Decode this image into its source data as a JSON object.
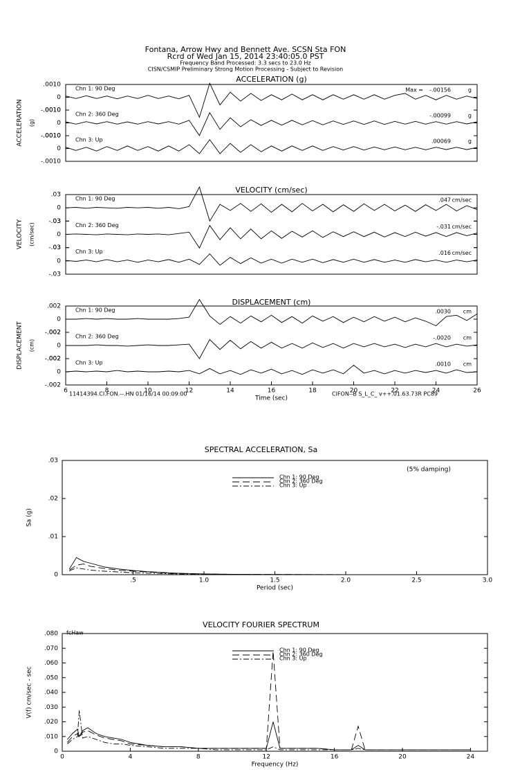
{
  "header": {
    "lines": [
      "Fontana, Arrow Hwy and Bennett Ave.     SCSN Sta FON",
      "Rcrd of Wed Jan 15, 2014 23:40:05.0 PST",
      "Frequency Band Processed: 3.3 secs to 23.0 Hz",
      "CISN/CSMIP Preliminary Strong Motion Processing - Subject to Revision"
    ]
  },
  "chart_data": [
    {
      "type": "strip",
      "title": "ACCELERATION (g)",
      "ylabel": "ACCELERATION",
      "yunit_label": "(g)",
      "unit": "g",
      "x": [
        6,
        6.5,
        7,
        7.5,
        8,
        8.5,
        9,
        9.5,
        10,
        10.5,
        11,
        11.5,
        12,
        12.5,
        13,
        13.5,
        14,
        14.5,
        15,
        15.5,
        16,
        16.5,
        17,
        17.5,
        18,
        18.5,
        19,
        19.5,
        20,
        20.5,
        21,
        21.5,
        22,
        22.5,
        23,
        23.5,
        24,
        24.5,
        25,
        25.5,
        26
      ],
      "xlim": [
        6,
        26
      ],
      "ylim": [
        -0.001,
        0.001
      ],
      "yticks": [
        {
          "value": 0.001,
          "label": ".0010"
        },
        0,
        {
          "value": -0.001,
          "label": "-.0010"
        }
      ],
      "series": [
        {
          "name": "Chn 1: 90 Deg",
          "color": "#000",
          "peak_prefix": "Max =",
          "peak_label": "-.00156",
          "values": [
            0.0001,
            -0.0001,
            0.00012,
            -0.0001,
            0.0001,
            -0.00012,
            0.0001,
            -0.0001,
            0.00015,
            -0.0001,
            0.0001,
            -0.00012,
            0.00015,
            -0.00156,
            0.0011,
            -0.0006,
            0.0004,
            -0.0003,
            0.0003,
            -0.00025,
            0.0002,
            -0.0002,
            0.00025,
            -0.0002,
            0.0002,
            -0.0002,
            0.0002,
            -0.00015,
            0.0002,
            -0.00015,
            0.0002,
            -0.00015,
            0.00015,
            0.0003,
            -0.00015,
            0.00015,
            -0.0002,
            0.00015,
            -0.00015,
            0.0001,
            -0.0001
          ]
        },
        {
          "name": "Chn 2: 360 Deg",
          "color": "#000",
          "peak_label": "-.00099",
          "values": [
            8e-05,
            -0.0001,
            0.0001,
            -8e-05,
            0.0001,
            -0.0001,
            8e-05,
            -0.0001,
            0.0001,
            -8e-05,
            0.0001,
            -0.0001,
            0.0002,
            -0.00099,
            0.0008,
            -0.0005,
            0.0004,
            -0.0003,
            0.00025,
            -0.0002,
            0.0002,
            -0.00018,
            0.0002,
            -0.00015,
            0.00018,
            -0.00015,
            0.00015,
            -0.00012,
            0.00015,
            -0.00012,
            0.00015,
            -0.00012,
            0.00012,
            -0.0001,
            0.00012,
            -0.0001,
            0.0001,
            -0.0001,
            0.0001,
            -8e-05,
            8e-05
          ]
        },
        {
          "name": "Chn 3: Up",
          "color": "#000",
          "peak_label": ".00069",
          "values": [
            0.0001,
            -0.00015,
            0.0001,
            -0.0002,
            0.00015,
            -0.00015,
            0.0002,
            -0.00015,
            0.00015,
            -0.0002,
            0.0002,
            -0.0002,
            0.0003,
            -0.0004,
            0.00069,
            -0.0004,
            0.0004,
            -0.0003,
            0.0003,
            -0.00025,
            0.0002,
            -0.0002,
            0.0002,
            -0.00015,
            0.0002,
            -0.00015,
            0.00015,
            -0.00012,
            0.00015,
            -0.00012,
            0.00012,
            -0.0001,
            0.00012,
            -0.0001,
            0.0001,
            -0.0001,
            0.0001,
            -8e-05,
            0.0001,
            -8e-05,
            8e-05
          ]
        }
      ]
    },
    {
      "type": "strip",
      "title": "VELOCITY (cm/sec)",
      "ylabel": "VELOCITY",
      "yunit_label": "(cm/sec)",
      "unit": "cm/sec",
      "x": [
        6,
        6.5,
        7,
        7.5,
        8,
        8.5,
        9,
        9.5,
        10,
        10.5,
        11,
        11.5,
        12,
        12.5,
        13,
        13.5,
        14,
        14.5,
        15,
        15.5,
        16,
        16.5,
        17,
        17.5,
        18,
        18.5,
        19,
        19.5,
        20,
        20.5,
        21,
        21.5,
        22,
        22.5,
        23,
        23.5,
        24,
        24.5,
        25,
        25.5,
        26
      ],
      "xlim": [
        6,
        26
      ],
      "ylim": [
        -0.03,
        0.03
      ],
      "yticks": [
        {
          "value": 0.03,
          "label": ".03"
        },
        0,
        {
          "value": -0.03,
          "label": "-.03"
        }
      ],
      "series": [
        {
          "name": "Chn 1: 90 Deg",
          "color": "#000",
          "peak_label": ".047",
          "values": [
            0,
            0.001,
            -0.001,
            0.001,
            0,
            -0.001,
            0.001,
            0,
            0.001,
            -0.001,
            0.001,
            -0.002,
            0.003,
            0.047,
            -0.03,
            0.008,
            -0.006,
            0.01,
            -0.008,
            0.009,
            -0.01,
            0.008,
            -0.009,
            0.01,
            -0.007,
            0.008,
            -0.009,
            0.007,
            -0.008,
            0.009,
            -0.006,
            0.008,
            -0.007,
            0.006,
            -0.008,
            0.007,
            -0.006,
            0.008,
            -0.007,
            0.005,
            -0.004
          ]
        },
        {
          "name": "Chn 2: 360 Deg",
          "color": "#000",
          "peak_label": "-.031",
          "values": [
            0,
            0.001,
            0,
            -0.001,
            0.001,
            0,
            -0.001,
            0.001,
            0,
            0.001,
            -0.001,
            0.002,
            0.005,
            -0.031,
            0.02,
            -0.012,
            0.015,
            -0.01,
            0.012,
            -0.01,
            0.008,
            -0.009,
            0.007,
            -0.006,
            0.008,
            -0.007,
            0.006,
            -0.005,
            0.006,
            -0.005,
            0.005,
            -0.006,
            0.004,
            -0.005,
            0.005,
            -0.004,
            0.004,
            -0.005,
            0.004,
            -0.003,
            0.003
          ]
        },
        {
          "name": "Chn 3: Up",
          "color": "#000",
          "peak_label": ".016",
          "values": [
            0.001,
            -0.001,
            0.002,
            -0.002,
            0.003,
            -0.002,
            0.002,
            -0.003,
            0.002,
            -0.002,
            0.003,
            -0.003,
            0.004,
            -0.008,
            0.016,
            -0.01,
            0.008,
            -0.006,
            0.007,
            -0.005,
            0.004,
            -0.005,
            0.004,
            -0.003,
            0.004,
            -0.004,
            0.003,
            -0.003,
            0.004,
            -0.003,
            0.003,
            -0.003,
            0.002,
            -0.003,
            0.003,
            -0.002,
            0.002,
            -0.003,
            0.002,
            -0.002,
            0.002
          ]
        }
      ]
    },
    {
      "type": "strip",
      "title": "DISPLACEMENT (cm)",
      "ylabel": "DISPLACEMENT",
      "yunit_label": "(cm)",
      "unit": "cm",
      "xlabel": "Time (sec)",
      "annotations": [
        "11414394.CI.FON.--.HN 01/16/14 00:09:00",
        "CIFON--B  S_L_C_  v++.01.63.73R PC89"
      ],
      "x": [
        6,
        6.5,
        7,
        7.5,
        8,
        8.5,
        9,
        9.5,
        10,
        10.5,
        11,
        11.5,
        12,
        12.5,
        13,
        13.5,
        14,
        14.5,
        15,
        15.5,
        16,
        16.5,
        17,
        17.5,
        18,
        18.5,
        19,
        19.5,
        20,
        20.5,
        21,
        21.5,
        22,
        22.5,
        23,
        23.5,
        24,
        24.5,
        25,
        25.5,
        26
      ],
      "xlim": [
        6,
        26
      ],
      "xticks": [
        6,
        8,
        10,
        12,
        14,
        16,
        18,
        20,
        22,
        24,
        26
      ],
      "ylim": [
        -0.002,
        0.002
      ],
      "yticks": [
        {
          "value": 0.002,
          "label": ".002"
        },
        0,
        {
          "value": -0.002,
          "label": "-.002"
        }
      ],
      "series": [
        {
          "name": "Chn 1: 90 Deg",
          "color": "#000",
          "peak_label": ".0030",
          "values": [
            0,
            0,
            0.0001,
            0,
            0.0001,
            0,
            0,
            0.0001,
            0,
            0,
            0,
            0.0001,
            0.0003,
            0.003,
            0.0005,
            -0.0008,
            0.0004,
            -0.0006,
            0.0005,
            -0.0004,
            0.0006,
            -0.0005,
            0.0004,
            -0.0006,
            0.0005,
            -0.0003,
            0.0004,
            -0.0005,
            0.0003,
            -0.0004,
            0.0004,
            -0.0003,
            0.0003,
            -0.0004,
            0.0002,
            -0.0003,
            -0.001,
            0.0004,
            0.0006,
            -0.0002,
            0.0008
          ]
        },
        {
          "name": "Chn 2: 360 Deg",
          "color": "#000",
          "peak_label": "-.0020",
          "values": [
            0,
            0,
            0,
            0.0001,
            0,
            0,
            -0.0001,
            0,
            0.0001,
            0,
            0,
            0.0001,
            0.0002,
            -0.002,
            0.0009,
            -0.0006,
            0.0008,
            -0.0005,
            0.0006,
            -0.0004,
            0.0005,
            -0.0004,
            0.0003,
            -0.0004,
            0.0004,
            -0.0003,
            0.0003,
            -0.0004,
            0.0003,
            -0.0002,
            0.0003,
            -0.0002,
            0.0002,
            -0.0003,
            0.0002,
            -0.0002,
            0.0003,
            -0.0002,
            0.0002,
            -0.0001,
            0.0001
          ]
        },
        {
          "name": "Chn 3: Up",
          "color": "#000",
          "peak_label": ".0010",
          "values": [
            0,
            0.0001,
            0,
            0.0001,
            0,
            0.0002,
            0,
            0.0001,
            0,
            0,
            0.0001,
            0,
            0.0002,
            -0.0003,
            0.0005,
            -0.0003,
            0.0002,
            -0.0004,
            0.0003,
            -0.0002,
            0.0004,
            -0.0003,
            0.0002,
            -0.0004,
            0.0003,
            -0.0002,
            0.0003,
            -0.0003,
            0.001,
            -0.0002,
            0.0002,
            -0.0003,
            0.0002,
            -0.0002,
            0.0002,
            -0.0001,
            0.0002,
            -0.0002,
            0.0003,
            -0.0001,
            0
          ]
        }
      ]
    },
    {
      "type": "line",
      "title": "SPECTRAL ACCELERATION, Sa",
      "ylabel": "Sa (g)",
      "xlabel": "Period (sec)",
      "note": "(5% damping)",
      "x": [
        0.05,
        0.1,
        0.15,
        0.2,
        0.3,
        0.4,
        0.5,
        0.6,
        0.7,
        0.8,
        1.0,
        1.2,
        1.5,
        2.0
      ],
      "xlim": [
        0,
        3
      ],
      "ylim": [
        0,
        0.03
      ],
      "xticks": [
        {
          "value": 0.5,
          "label": ".5"
        },
        {
          "value": 1,
          "label": "1.0"
        },
        {
          "value": 1.5,
          "label": "1.5"
        },
        {
          "value": 2,
          "label": "2.0"
        },
        {
          "value": 2.5,
          "label": "2.5"
        },
        {
          "value": 3,
          "label": "3.0"
        }
      ],
      "yticks": [
        0,
        {
          "value": 0.01,
          "label": ".01"
        },
        {
          "value": 0.02,
          "label": ".02"
        },
        {
          "value": 0.03,
          "label": ".03"
        }
      ],
      "series": [
        {
          "name": "Chn 1: 90 Deg",
          "color": "#000",
          "dash": "none",
          "values": [
            0.0015,
            0.0045,
            0.0035,
            0.003,
            0.002,
            0.0015,
            0.0011,
            0.0008,
            0.0006,
            0.0004,
            0.0002,
            0.0001,
            5e-05,
            2e-05
          ]
        },
        {
          "name": "Chn 2: 360 Deg",
          "color": "#000",
          "dash": "10,5",
          "values": [
            0.0012,
            0.0025,
            0.0028,
            0.0022,
            0.0016,
            0.0012,
            0.0009,
            0.0007,
            0.0005,
            0.0003,
            0.0002,
            0.0001,
            5e-05,
            2e-05
          ]
        },
        {
          "name": "Chn 3: Up",
          "color": "#000",
          "dash": "8,3,2,3",
          "values": [
            0.001,
            0.0018,
            0.0015,
            0.0012,
            0.0009,
            0.0007,
            0.0005,
            0.0004,
            0.0003,
            0.0002,
            0.0001,
            5e-05,
            2e-05,
            1e-05
          ]
        }
      ]
    },
    {
      "type": "line",
      "title": "VELOCITY FOURIER SPECTRUM",
      "ylabel": "V(f)   cm/sec - sec",
      "xlabel": "Frequency (Hz)",
      "note": "fcHaw",
      "x": [
        0.3,
        0.6,
        0.9,
        1.0,
        1.2,
        1.5,
        2,
        2.5,
        3,
        3.5,
        4,
        5,
        6,
        7,
        8,
        9,
        10,
        11,
        12,
        12.4,
        12.8,
        13,
        14,
        15,
        16,
        17,
        17.4,
        17.8,
        18,
        19,
        20,
        22,
        24
      ],
      "xlim": [
        0,
        25
      ],
      "ylim": [
        0,
        0.08
      ],
      "xticks": [
        0,
        4,
        8,
        12,
        16,
        20,
        24
      ],
      "yticks": [
        0,
        {
          "value": 0.01,
          "label": ".010"
        },
        {
          "value": 0.02,
          "label": ".020"
        },
        {
          "value": 0.03,
          "label": ".030"
        },
        {
          "value": 0.04,
          "label": ".040"
        },
        {
          "value": 0.05,
          "label": ".050"
        },
        {
          "value": 0.06,
          "label": ".060"
        },
        {
          "value": 0.07,
          "label": ".070"
        },
        {
          "value": 0.08,
          "label": ".080"
        }
      ],
      "series": [
        {
          "name": "Chn 1: 90 Deg",
          "color": "#000",
          "dash": "none",
          "values": [
            0.008,
            0.012,
            0.015,
            0.01,
            0.014,
            0.016,
            0.012,
            0.01,
            0.009,
            0.008,
            0.006,
            0.004,
            0.003,
            0.003,
            0.002,
            0.002,
            0.002,
            0.002,
            0.002,
            0.02,
            0.002,
            0.002,
            0.002,
            0.002,
            0.001,
            0.001,
            0.004,
            0.001,
            0.001,
            0.001,
            0.001,
            0.001,
            0.001
          ]
        },
        {
          "name": "Chn 2: 360 Deg",
          "color": "#000",
          "dash": "10,5",
          "values": [
            0.006,
            0.01,
            0.012,
            0.009,
            0.013,
            0.014,
            0.011,
            0.009,
            0.008,
            0.007,
            0.005,
            0.004,
            0.003,
            0.003,
            0.002,
            0.002,
            0.002,
            0.002,
            0.002,
            0.068,
            0.002,
            0.002,
            0.002,
            0.002,
            0.001,
            0.001,
            0.017,
            0.001,
            0.001,
            0.001,
            0.001,
            0.001,
            0.001
          ]
        },
        {
          "name": "Chn 3: Up",
          "color": "#000",
          "dash": "8,3,2,3",
          "values": [
            0.005,
            0.008,
            0.01,
            0.028,
            0.009,
            0.01,
            0.008,
            0.006,
            0.005,
            0.005,
            0.004,
            0.003,
            0.002,
            0.002,
            0.002,
            0.001,
            0.001,
            0.001,
            0.001,
            0.003,
            0.001,
            0.001,
            0.001,
            0.001,
            0.001,
            0.001,
            0.002,
            0.001,
            0.001,
            0.001,
            0.001,
            0.001,
            0.001
          ]
        }
      ]
    }
  ]
}
